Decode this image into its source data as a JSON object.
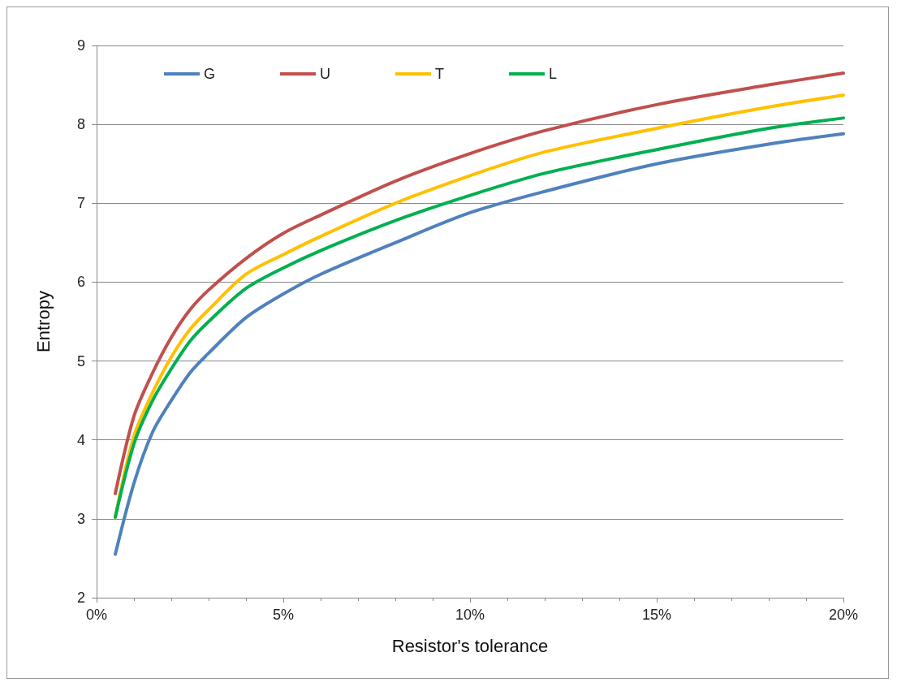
{
  "chart_data": {
    "type": "line",
    "xlabel": "Resistor's tolerance",
    "ylabel": "Entropy",
    "x": [
      0.5,
      1,
      1.5,
      2,
      2.5,
      3,
      4,
      5,
      6,
      8,
      10,
      12,
      15,
      18,
      20
    ],
    "series": [
      {
        "name": "G",
        "color": "#4f81bd",
        "values": [
          2.55,
          3.45,
          4.1,
          4.5,
          4.85,
          5.1,
          5.55,
          5.85,
          6.1,
          6.5,
          6.88,
          7.15,
          7.5,
          7.75,
          7.88
        ]
      },
      {
        "name": "U",
        "color": "#c0504d",
        "values": [
          3.32,
          4.3,
          4.85,
          5.3,
          5.65,
          5.9,
          6.3,
          6.62,
          6.85,
          7.28,
          7.63,
          7.92,
          8.25,
          8.5,
          8.65
        ]
      },
      {
        "name": "T",
        "color": "#ffc000",
        "values": [
          3.02,
          4.05,
          4.6,
          5.05,
          5.4,
          5.65,
          6.1,
          6.35,
          6.58,
          7.0,
          7.35,
          7.65,
          7.95,
          8.22,
          8.37
        ]
      },
      {
        "name": "L",
        "color": "#00b050",
        "values": [
          3.02,
          3.95,
          4.5,
          4.9,
          5.25,
          5.5,
          5.92,
          6.18,
          6.4,
          6.78,
          7.1,
          7.38,
          7.68,
          7.95,
          8.08
        ]
      }
    ],
    "xlim": [
      0,
      20
    ],
    "xticks": [
      {
        "value": 0,
        "label": "0%"
      },
      {
        "value": 5,
        "label": "5%"
      },
      {
        "value": 10,
        "label": "10%"
      },
      {
        "value": 15,
        "label": "15%"
      },
      {
        "value": 20,
        "label": "20%"
      }
    ],
    "ylim": [
      2,
      9
    ],
    "yticks": [
      2,
      3,
      4,
      5,
      6,
      7,
      8,
      9
    ],
    "grid": "y",
    "legend": "top left",
    "marker": "none",
    "line_style": "solid"
  }
}
